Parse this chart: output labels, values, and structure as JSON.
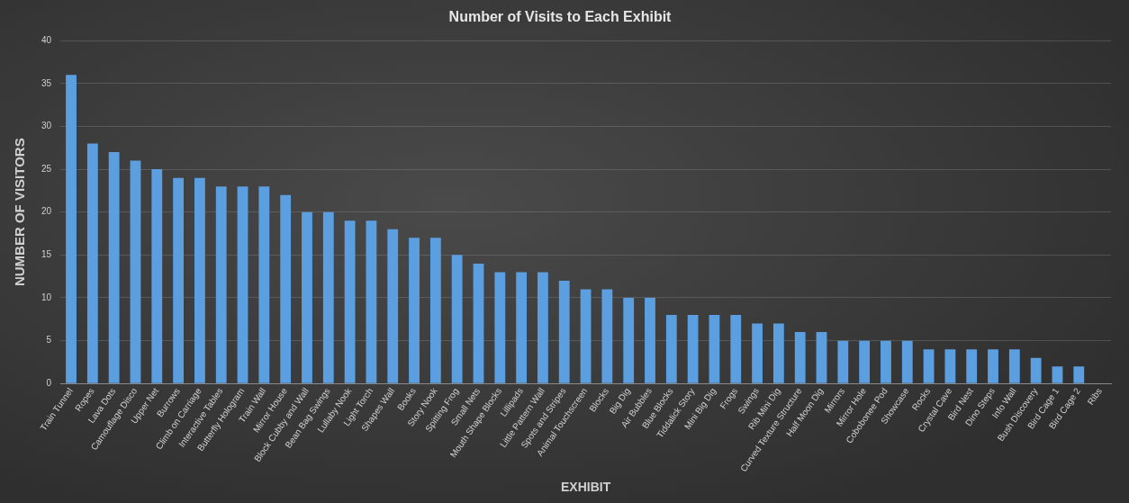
{
  "chart_data": {
    "type": "bar",
    "title": "Number of Visits to Each Exhibit",
    "xlabel": "EXHIBIT",
    "ylabel": "NUMBER OF VISITORS",
    "categories": [
      "Train Tunnel",
      "Ropes",
      "Lava Dots",
      "Camouflage Disco",
      "Upper Net",
      "Burrows",
      "Climb on Carriage",
      "Interactive Tables",
      "Butterfly Hologram",
      "Train Wall",
      "Mirror House",
      "Block Cubby and Wall",
      "Bean Bag Swings",
      "Lullaby Nook",
      "Light Torch",
      "Shapes Wall",
      "Books",
      "Story Nook",
      "Spitting Frog",
      "Small Nets",
      "Mouth Shape Blocks",
      "Lillipads",
      "Little Pattern Wall",
      "Spots and Stripes",
      "Animal Touchscreen",
      "Blocks",
      "Big Dig",
      "Air Bubbles",
      "Blue Blocks",
      "Tiddalick Story",
      "Mini Big Dig",
      "Frogs",
      "Swings",
      "Rib Mini Dig",
      "Curved Texture Structure",
      "Half Moon Dig",
      "Mirrors",
      "Mirror Hole",
      "Cobobonee Pod",
      "Showcase",
      "Rocks",
      "Crystal Cave",
      "Bird Nest",
      "Dino Steps",
      "Info Wall",
      "Bush Discovery",
      "Bird Cage 1",
      "Bird Cage 2",
      "Ribs"
    ],
    "values": [
      36,
      28,
      27,
      26,
      25,
      24,
      24,
      23,
      23,
      23,
      22,
      20,
      20,
      19,
      19,
      18,
      17,
      17,
      15,
      14,
      13,
      13,
      13,
      12,
      11,
      11,
      10,
      10,
      8,
      8,
      8,
      8,
      7,
      7,
      6,
      6,
      5,
      5,
      5,
      5,
      4,
      4,
      4,
      4,
      4,
      3,
      2,
      2,
      0
    ],
    "color": "#5b9fe0",
    "ylim": [
      0,
      40
    ],
    "yticks": [
      0,
      5,
      10,
      15,
      20,
      25,
      30,
      35,
      40
    ],
    "grid": "y"
  }
}
